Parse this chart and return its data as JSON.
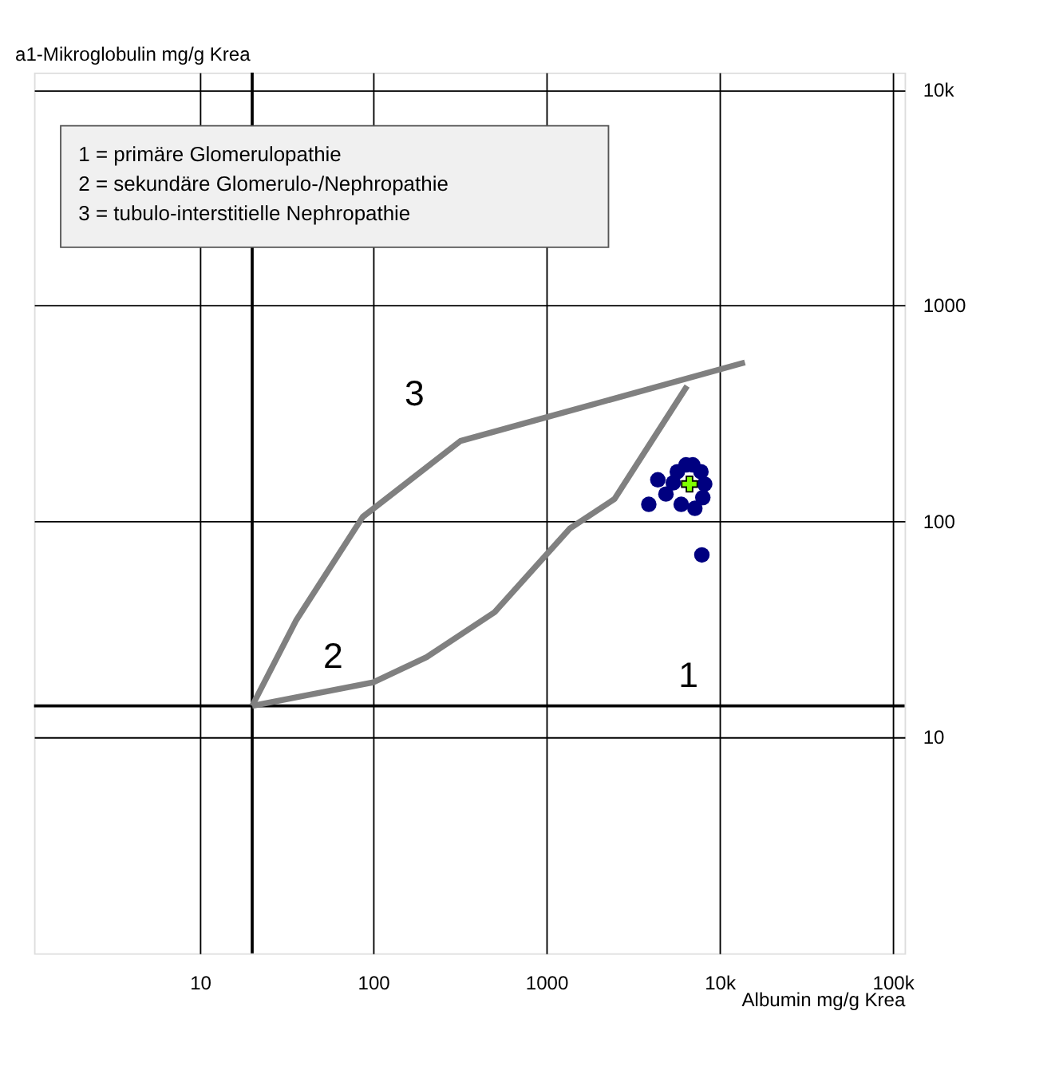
{
  "chart_data": {
    "type": "scatter",
    "xlabel": "Albumin mg/g Krea",
    "ylabel": "a1-Mikroglobulin mg/g Krea",
    "log": "xy",
    "grid": true,
    "xlim": [
      1.1,
      117000
    ],
    "ylim": [
      1,
      12000
    ],
    "xticks": [
      10,
      100,
      {
        "value": 1000,
        "label": "1000"
      },
      {
        "value": 10000,
        "label": "10k"
      },
      {
        "value": 100000,
        "label": "100k"
      }
    ],
    "yticks": [
      10,
      100,
      {
        "value": 1000,
        "label": "1000"
      },
      {
        "value": 10000,
        "label": "10k"
      }
    ],
    "series": [
      {
        "color": "#000080",
        "marker": "circle",
        "x": [
          3900,
          4400,
          4900,
          5700,
          6400,
          7000,
          7800,
          8200,
          8000,
          7200,
          6000,
          5400,
          7900
        ],
        "values": [
          120,
          156,
          134,
          170,
          183,
          183,
          170,
          149,
          129,
          115,
          120,
          151,
          70
        ]
      },
      {
        "color": "#80ff00",
        "marker": "cross",
        "x": [
          6700
        ],
        "values": [
          149
        ]
      },
      {
        "type": "line",
        "color": "#808080",
        "marker": "none",
        "x": [
          20,
          36,
          87,
          319,
          14000
        ],
        "values": [
          14,
          35,
          105,
          236,
          545
        ]
      },
      {
        "type": "line",
        "color": "#808080",
        "marker": "none",
        "x": [
          20,
          100,
          203,
          502,
          1370,
          2470,
          6490
        ],
        "values": [
          14,
          18,
          23.5,
          38,
          93,
          127,
          424
        ]
      }
    ],
    "ref_lines": [
      {
        "axis": "x",
        "value": 20,
        "color": "#000000"
      },
      {
        "axis": "y",
        "value": 14,
        "color": "#000000"
      }
    ],
    "annotations": [
      "1 = primäre Glomerulopathie",
      "2 = sekundäre Glomerulo-/Nephropathie",
      "3 = tubulo-interstitielle Nephropathie",
      "1",
      "2",
      "3"
    ]
  }
}
